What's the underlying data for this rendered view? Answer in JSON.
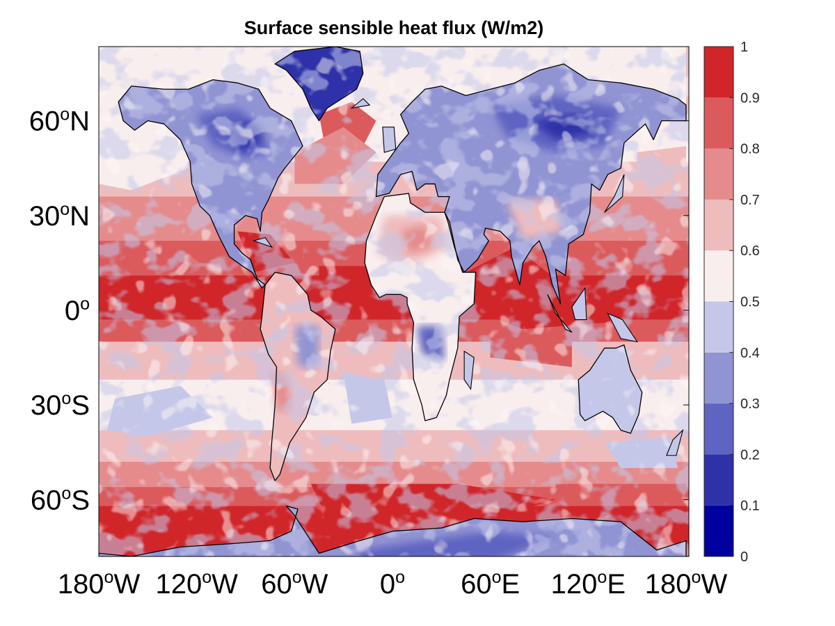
{
  "title": "Surface sensible heat flux (W/m2)",
  "map": {
    "projection": "equirectangular",
    "lon_range": [
      -180,
      180
    ],
    "lat_range": [
      -90,
      90
    ],
    "coastlines": true,
    "lat_ticks": [
      {
        "value": 60,
        "num": "60",
        "sup": "o",
        "hemi": "N"
      },
      {
        "value": 30,
        "num": "30",
        "sup": "o",
        "hemi": "N"
      },
      {
        "value": 0,
        "num": "0",
        "sup": "o",
        "hemi": ""
      },
      {
        "value": -30,
        "num": "30",
        "sup": "o",
        "hemi": "S"
      },
      {
        "value": -60,
        "num": "60",
        "sup": "o",
        "hemi": "S"
      }
    ],
    "lon_ticks": [
      {
        "value": -180,
        "num": "180",
        "sup": "o",
        "hemi": "W"
      },
      {
        "value": -120,
        "num": "120",
        "sup": "o",
        "hemi": "W"
      },
      {
        "value": -60,
        "num": "60",
        "sup": "o",
        "hemi": "W"
      },
      {
        "value": 0,
        "num": "0",
        "sup": "o",
        "hemi": ""
      },
      {
        "value": 60,
        "num": "60",
        "sup": "o",
        "hemi": "E"
      },
      {
        "value": 120,
        "num": "120",
        "sup": "o",
        "hemi": "E"
      },
      {
        "value": 180,
        "num": "180",
        "sup": "o",
        "hemi": "W"
      }
    ]
  },
  "colorbar": {
    "placement": "right",
    "range": [
      0,
      1
    ],
    "ticks": [
      "0",
      "0.1",
      "0.2",
      "0.3",
      "0.4",
      "0.5",
      "0.6",
      "0.7",
      "0.8",
      "0.9",
      "1"
    ],
    "levels": [
      {
        "from": 0.0,
        "to": 0.1,
        "color": "#00009e"
      },
      {
        "from": 0.1,
        "to": 0.2,
        "color": "#2e31a8"
      },
      {
        "from": 0.2,
        "to": 0.3,
        "color": "#5f63c1"
      },
      {
        "from": 0.3,
        "to": 0.4,
        "color": "#9194d3"
      },
      {
        "from": 0.4,
        "to": 0.5,
        "color": "#c5c7e8"
      },
      {
        "from": 0.5,
        "to": 0.6,
        "color": "#f9eeee"
      },
      {
        "from": 0.6,
        "to": 0.7,
        "color": "#efbcbd"
      },
      {
        "from": 0.7,
        "to": 0.8,
        "color": "#e58b8c"
      },
      {
        "from": 0.8,
        "to": 0.9,
        "color": "#db5a5c"
      },
      {
        "from": 0.9,
        "to": 1.0,
        "color": "#d0262a"
      }
    ]
  }
}
